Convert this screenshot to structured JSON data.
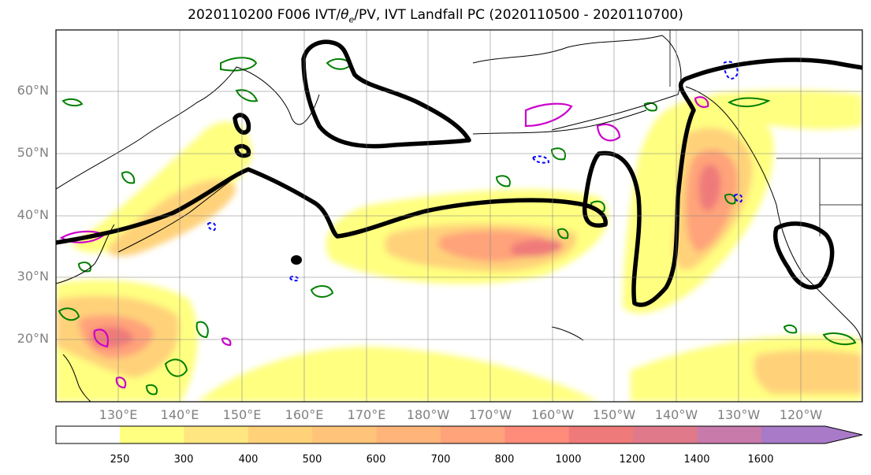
{
  "title": {
    "prefix": "2020110200 F006 IVT/",
    "theta_symbol": "θ",
    "theta_subscript": "e",
    "suffix": "/PV, IVT Landfall PC (2020110500 - 2020110700)"
  },
  "map": {
    "projection": "cylindrical",
    "lon_range_deg_east": [
      120,
      250
    ],
    "lat_range_deg": [
      10,
      70
    ],
    "lat_ticks": [
      {
        "value": 60,
        "label": "60°N"
      },
      {
        "value": 50,
        "label": "50°N"
      },
      {
        "value": 40,
        "label": "40°N"
      },
      {
        "value": 30,
        "label": "30°N"
      },
      {
        "value": 20,
        "label": "20°N"
      }
    ],
    "lon_ticks": [
      {
        "value": 130,
        "label": "130°E"
      },
      {
        "value": 140,
        "label": "140°E"
      },
      {
        "value": 150,
        "label": "150°E"
      },
      {
        "value": 160,
        "label": "160°E"
      },
      {
        "value": 170,
        "label": "170°E"
      },
      {
        "value": 180,
        "label": "180°W"
      },
      {
        "value": 190,
        "label": "170°W"
      },
      {
        "value": 200,
        "label": "160°W"
      },
      {
        "value": 210,
        "label": "150°W"
      },
      {
        "value": 220,
        "label": "140°W"
      },
      {
        "value": 230,
        "label": "130°W"
      },
      {
        "value": 240,
        "label": "120°W"
      }
    ],
    "gridlines": true,
    "contour_colors": {
      "landfall_pc": "#000000",
      "theta_e": "#008000",
      "pv": "#cc00cc",
      "dashed_blue": "#0000ff"
    }
  },
  "colorbar": {
    "levels": [
      250,
      300,
      400,
      500,
      600,
      700,
      800,
      1000,
      1200,
      1400,
      1600
    ],
    "labels": [
      "250",
      "300",
      "400",
      "500",
      "600",
      "700",
      "800",
      "1000",
      "1200",
      "1400",
      "1600"
    ],
    "colors": [
      "#ffff80",
      "#ffe680",
      "#ffd27a",
      "#ffc47a",
      "#ffb47a",
      "#ffa37a",
      "#ff8c7a",
      "#ef7a7a",
      "#e07a8a",
      "#c87aaa",
      "#a87ac8"
    ],
    "extend": "max"
  }
}
